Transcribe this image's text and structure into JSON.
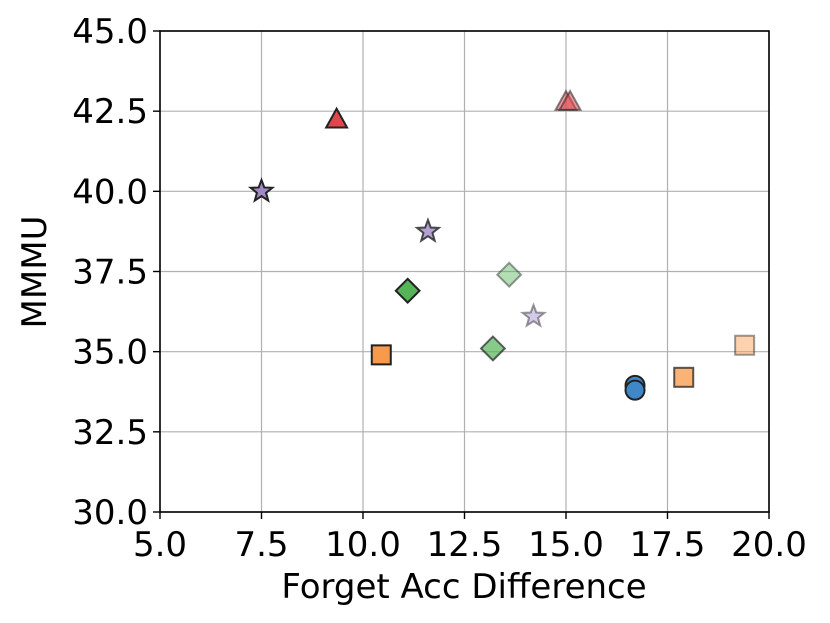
{
  "chart_data": {
    "type": "scatter",
    "title": "",
    "xlabel": "Forget Acc Difference",
    "ylabel": "MMMU",
    "xlim": [
      5.0,
      20.0
    ],
    "ylim": [
      30.0,
      45.0
    ],
    "grid": true,
    "x_ticks": [
      "5.0",
      "7.5",
      "10.0",
      "12.5",
      "15.0",
      "17.5",
      "20.0"
    ],
    "x_tick_values": [
      5.0,
      7.5,
      10.0,
      12.5,
      15.0,
      17.5,
      20.0
    ],
    "y_ticks": [
      "30.0",
      "32.5",
      "35.0",
      "37.5",
      "40.0",
      "42.5",
      "45.0"
    ],
    "y_tick_values": [
      30.0,
      32.5,
      35.0,
      37.5,
      40.0,
      42.5,
      45.0
    ],
    "points": [
      {
        "x": 7.5,
        "y": 40.0,
        "marker": "star",
        "color": "#9f8ac6",
        "alpha": 1.0
      },
      {
        "x": 11.6,
        "y": 38.75,
        "marker": "star",
        "color": "#9f8ac6",
        "alpha": 0.8
      },
      {
        "x": 14.2,
        "y": 36.1,
        "marker": "star",
        "color": "#9f8ac6",
        "alpha": 0.45
      },
      {
        "x": 9.35,
        "y": 42.25,
        "marker": "triangle",
        "color": "#e0474c",
        "alpha": 1.0
      },
      {
        "x": 15.0,
        "y": 42.8,
        "marker": "triangle",
        "color": "#e0474c",
        "alpha": 0.55
      },
      {
        "x": 15.1,
        "y": 42.8,
        "marker": "triangle",
        "color": "#e0474c",
        "alpha": 0.55
      },
      {
        "x": 11.1,
        "y": 36.9,
        "marker": "diamond",
        "color": "#56b458",
        "alpha": 1.0
      },
      {
        "x": 13.2,
        "y": 35.1,
        "marker": "diamond",
        "color": "#56b458",
        "alpha": 0.7
      },
      {
        "x": 13.6,
        "y": 37.4,
        "marker": "diamond",
        "color": "#56b458",
        "alpha": 0.45
      },
      {
        "x": 10.45,
        "y": 34.9,
        "marker": "square",
        "color": "#f89a4a",
        "alpha": 1.0
      },
      {
        "x": 17.9,
        "y": 34.2,
        "marker": "square",
        "color": "#f89a4a",
        "alpha": 0.75
      },
      {
        "x": 19.4,
        "y": 35.2,
        "marker": "square",
        "color": "#f89a4a",
        "alpha": 0.45
      },
      {
        "x": 16.7,
        "y": 33.95,
        "marker": "circle",
        "color": "#3f87c6",
        "alpha": 1.0
      },
      {
        "x": 16.7,
        "y": 33.8,
        "marker": "circle",
        "color": "#3f87c6",
        "alpha": 1.0
      }
    ]
  }
}
